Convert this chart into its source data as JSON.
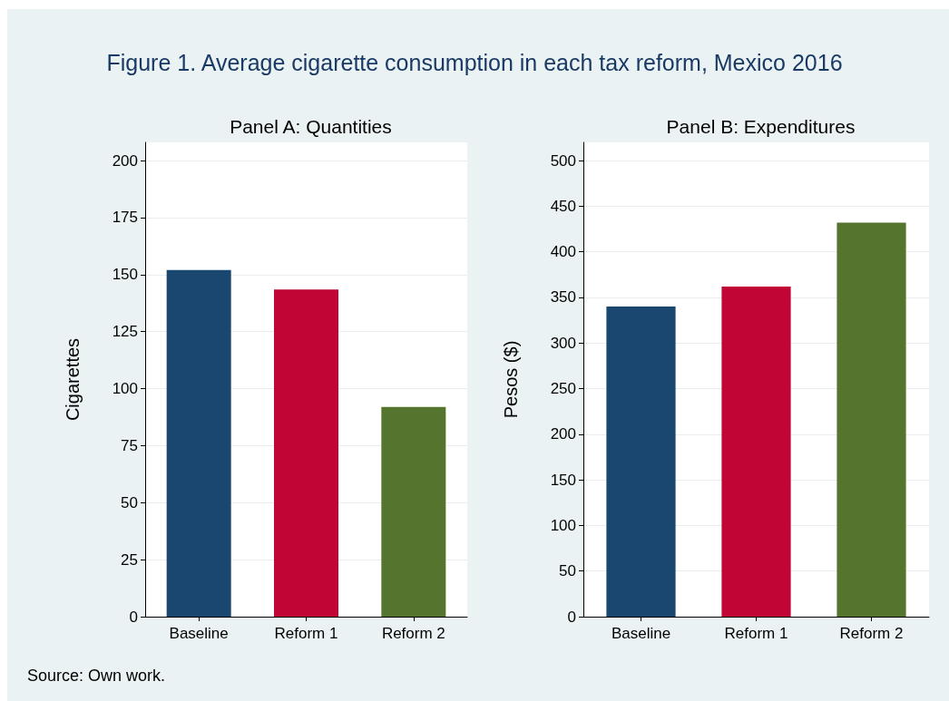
{
  "chart_data": [
    {
      "type": "bar",
      "title": "Figure 1. Average cigarette consumption in each tax reform, Mexico 2016",
      "subtitle": "Panel A: Quantities",
      "ylabel": "Cigarettes",
      "categories": [
        "Baseline",
        "Reform 1",
        "Reform 2"
      ],
      "values": [
        152,
        143.5,
        92
      ],
      "colors": [
        "#1a476f",
        "#c10534",
        "#55752f"
      ],
      "ylim": [
        0,
        208
      ],
      "yticks": [
        0,
        25,
        50,
        75,
        100,
        125,
        150,
        175,
        200
      ],
      "grid": "y",
      "annotations": [
        "Source: Own work."
      ]
    },
    {
      "type": "bar",
      "subtitle": "Panel B: Expenditures",
      "ylabel": "Pesos ($)",
      "categories": [
        "Baseline",
        "Reform 1",
        "Reform 2"
      ],
      "values": [
        340,
        362,
        432
      ],
      "colors": [
        "#1a476f",
        "#c10534",
        "#55752f"
      ],
      "ylim": [
        0,
        520
      ],
      "yticks": [
        0,
        50,
        100,
        150,
        200,
        250,
        300,
        350,
        400,
        450,
        500
      ],
      "grid": "y"
    }
  ]
}
